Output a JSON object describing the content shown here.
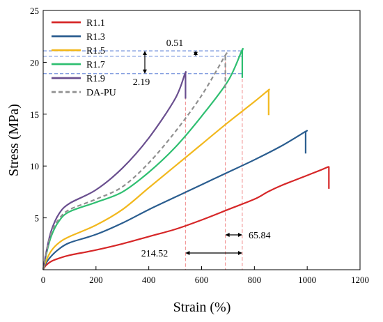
{
  "chart_data": {
    "type": "line",
    "xlabel": "Strain (%)",
    "ylabel": "Stress (MPa)",
    "xlim": [
      0,
      1200
    ],
    "ylim": [
      0,
      25
    ],
    "xticks": [
      0,
      200,
      400,
      600,
      800,
      1000,
      1200
    ],
    "yticks": [
      5,
      10,
      15,
      20,
      25
    ],
    "grid": false,
    "legend_position": "top-left",
    "series": [
      {
        "name": "R1.1",
        "color": "#d62728",
        "style": "solid",
        "x": [
          0,
          10,
          30,
          60,
          100,
          200,
          300,
          400,
          500,
          600,
          700,
          800,
          850,
          900,
          950,
          1000,
          1050,
          1078,
          1082,
          1082
        ],
        "y": [
          0,
          0.4,
          0.8,
          1.1,
          1.4,
          1.9,
          2.5,
          3.2,
          3.9,
          4.8,
          5.8,
          6.8,
          7.5,
          8.1,
          8.6,
          9.1,
          9.6,
          9.9,
          9.9,
          7.8
        ]
      },
      {
        "name": "R1.3",
        "color": "#2a5d8f",
        "style": "solid",
        "x": [
          0,
          10,
          30,
          60,
          100,
          200,
          300,
          400,
          500,
          600,
          700,
          800,
          900,
          992,
          994,
          994
        ],
        "y": [
          0,
          0.6,
          1.3,
          2.0,
          2.6,
          3.4,
          4.5,
          5.8,
          7.0,
          8.2,
          9.4,
          10.6,
          11.9,
          13.3,
          13.3,
          11.2
        ]
      },
      {
        "name": "R1.5",
        "color": "#f2b81d",
        "style": "solid",
        "x": [
          0,
          10,
          30,
          60,
          100,
          200,
          300,
          400,
          500,
          600,
          700,
          800,
          852,
          854,
          854
        ],
        "y": [
          0,
          0.8,
          1.8,
          2.6,
          3.2,
          4.3,
          5.8,
          7.9,
          10.0,
          12.1,
          14.2,
          16.2,
          17.3,
          17.3,
          14.9
        ]
      },
      {
        "name": "R1.7",
        "color": "#2fbf71",
        "style": "solid",
        "x": [
          0,
          10,
          30,
          60,
          100,
          200,
          300,
          400,
          500,
          600,
          700,
          752,
          754,
          754
        ],
        "y": [
          0,
          1.3,
          3.2,
          4.7,
          5.6,
          6.5,
          7.5,
          9.4,
          11.8,
          14.8,
          18.2,
          21.1,
          21.1,
          18.5
        ]
      },
      {
        "name": "R1.9",
        "color": "#6a4f8f",
        "style": "solid",
        "x": [
          0,
          10,
          30,
          60,
          100,
          200,
          300,
          400,
          500,
          537,
          539,
          539
        ],
        "y": [
          0,
          1.5,
          3.7,
          5.4,
          6.4,
          7.7,
          9.8,
          12.7,
          16.5,
          18.9,
          18.9,
          16.5
        ]
      },
      {
        "name": "DA-PU",
        "color": "#909090",
        "style": "dashed",
        "x": [
          0,
          10,
          30,
          60,
          100,
          200,
          300,
          400,
          500,
          600,
          688,
          690,
          690
        ],
        "y": [
          0,
          1.4,
          3.5,
          4.9,
          5.8,
          6.8,
          8.0,
          10.3,
          13.3,
          16.8,
          20.6,
          20.6,
          17.4
        ]
      }
    ],
    "annotations": {
      "h_guides_y": [
        21.1,
        20.6,
        18.9
      ],
      "v_guides_x": [
        539,
        690,
        754
      ],
      "labels": [
        "0.51",
        "2.19",
        "65.84",
        "214.52"
      ]
    }
  }
}
